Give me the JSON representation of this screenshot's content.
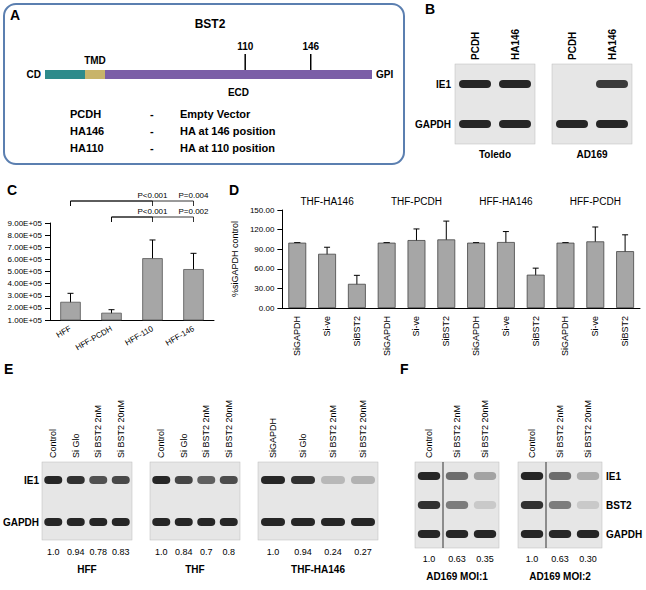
{
  "chart_data": [
    {
      "type": "bar",
      "title": "C",
      "categories": [
        "HFF",
        "HFF-PCDH",
        "HFF-110",
        "HFF-146"
      ],
      "values": [
        250000,
        160000,
        610000,
        520000
      ],
      "errors": [
        70000,
        25000,
        150000,
        130000
      ],
      "color": "#a6a6a6",
      "ylim": [
        100000,
        900000
      ],
      "yticks": [
        {
          "value": 100000,
          "label": "1.00E+05"
        },
        {
          "value": 200000,
          "label": "2.00E+05"
        },
        {
          "value": 300000,
          "label": "3.00E+05"
        },
        {
          "value": 400000,
          "label": "4.00E+05"
        },
        {
          "value": 500000,
          "label": "5.00E+05"
        },
        {
          "value": 600000,
          "label": "6.00E+05"
        },
        {
          "value": 700000,
          "label": "7.00E+05"
        },
        {
          "value": 800000,
          "label": "8.00E+05"
        },
        {
          "value": 900000,
          "label": "9.00E+05"
        }
      ],
      "grid": false,
      "annotations": [
        {
          "from": "HFF",
          "to": "HFF-110",
          "label": "P<0.001"
        },
        {
          "from": "HFF",
          "to": "HFF-146",
          "label": "P=0.004"
        },
        {
          "from": "HFF-PCDH",
          "to": "HFF-110",
          "label": "P<0.001"
        },
        {
          "from": "HFF-PCDH",
          "to": "HFF-146",
          "label": "P=0.002"
        }
      ]
    },
    {
      "type": "bar",
      "title": "D",
      "groups": [
        "THF-HA146",
        "THF-PCDH",
        "HFF-HA146",
        "HFF-PCDH"
      ],
      "categories": [
        "SiGAPDH",
        "Si-ve",
        "SiBST2",
        "SiGAPDH",
        "Si-ve",
        "SiBST2",
        "SiGAPDH",
        "Si-ve",
        "SiBST2",
        "SiGAPDH",
        "Si-ve",
        "SiBST2"
      ],
      "values": [
        100,
        83,
        37,
        100,
        104,
        105,
        100,
        101,
        51,
        100,
        102,
        87
      ],
      "errors": [
        0,
        10,
        13,
        0,
        17,
        28,
        0,
        16,
        10,
        0,
        22,
        25
      ],
      "color": "#a6a6a6",
      "ylabel": "%siGAPDH control",
      "ylim": [
        0,
        150
      ],
      "yticks": [
        {
          "value": 0,
          "label": "0.00"
        },
        {
          "value": 30,
          "label": "30.00"
        },
        {
          "value": 60,
          "label": "60.00"
        },
        {
          "value": 90,
          "label": "90.00"
        },
        {
          "value": 120,
          "label": "120.00"
        },
        {
          "value": 150,
          "label": "150.00"
        }
      ],
      "grid": false
    }
  ],
  "diagram": {
    "label": "A",
    "title": "BST2",
    "domains": [
      "CD",
      "TMD",
      "ECD"
    ],
    "end": "GPI",
    "sites": [
      110,
      146
    ],
    "constructs": [
      {
        "name": "PCDH",
        "sep": "-",
        "text": "Empty Vector"
      },
      {
        "name": "HA146",
        "sep": "-",
        "text": "HA at 146 position"
      },
      {
        "name": "HA110",
        "sep": "-",
        "text": "HA at 110 position"
      }
    ]
  },
  "blots": {
    "B": {
      "label": "B",
      "rows": [
        "IE1",
        "GAPDH"
      ],
      "lanes": [
        "PCDH",
        "HA146"
      ],
      "panels": [
        "Toledo",
        "AD169"
      ]
    },
    "E": {
      "label": "E",
      "rows": [
        "IE1",
        "GAPDH"
      ],
      "panels": [
        {
          "name": "HFF",
          "lanes": [
            "Control",
            "Si Glo",
            "Si BST2 2nM",
            "Si BST2 20nM"
          ],
          "values": [
            1.0,
            0.94,
            0.78,
            0.83
          ],
          "value_labels": [
            "1.0",
            "0.94",
            "0.78",
            "0.83"
          ]
        },
        {
          "name": "THF",
          "lanes": [
            "Control",
            "Si Glo",
            "Si BST2 2nM",
            "Si BST2 20nM"
          ],
          "values": [
            1.0,
            0.84,
            0.7,
            0.8
          ],
          "value_labels": [
            "1.0",
            "0.84",
            "0.7",
            "0.8"
          ]
        },
        {
          "name": "THF-HA146",
          "lanes": [
            "SiGAPDH",
            "Si Glo",
            "Si BST2 2nM",
            "Si BST2 20nM"
          ],
          "values": [
            1.0,
            0.94,
            0.24,
            0.27
          ],
          "value_labels": [
            "1.0",
            "0.94",
            "0.24",
            "0.27"
          ]
        }
      ]
    },
    "F": {
      "label": "F",
      "rows": [
        "IE1",
        "BST2",
        "GAPDH"
      ],
      "panels": [
        {
          "name": "AD169 MOI:1",
          "lanes": [
            "Control",
            "Si BST2 2nM",
            "Si BST2 20nM"
          ],
          "values": [
            1.0,
            0.63,
            0.35
          ],
          "value_labels": [
            "1.0",
            "0.63",
            "0.35"
          ]
        },
        {
          "name": "AD169 MOI:2",
          "lanes": [
            "Control",
            "Si BST2 2nM",
            "Si BST2 20nM"
          ],
          "values": [
            1.0,
            0.63,
            0.3
          ],
          "value_labels": [
            "1.0",
            "0.63",
            "0.30"
          ]
        }
      ]
    }
  }
}
